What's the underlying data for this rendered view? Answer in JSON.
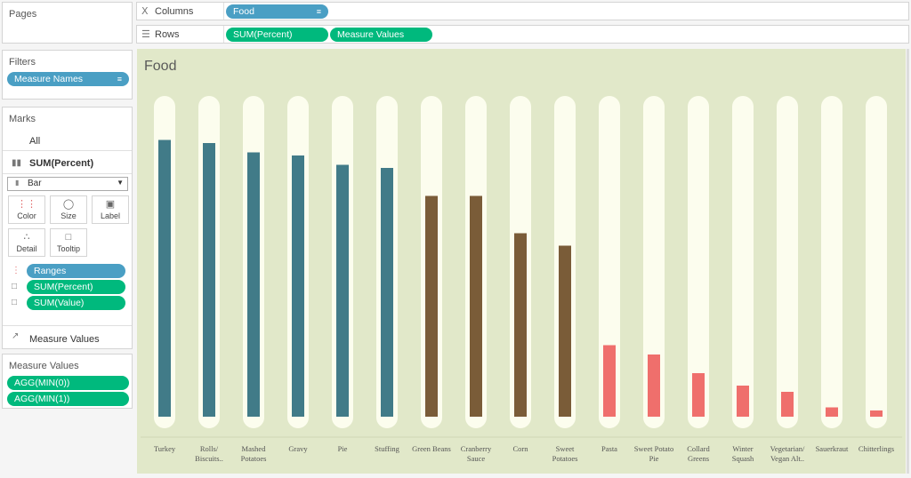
{
  "pages": {
    "title": "Pages"
  },
  "filters": {
    "title": "Filters",
    "pill": "Measure Names"
  },
  "marks": {
    "title": "Marks",
    "all": "All",
    "measure1": "SUM(Percent)",
    "mark_type": "Bar",
    "buttons": {
      "color": "Color",
      "size": "Size",
      "label": "Label",
      "detail": "Detail",
      "tooltip": "Tooltip"
    },
    "fields": [
      "Ranges",
      "SUM(Percent)",
      "SUM(Value)"
    ],
    "measure2": "Measure Values"
  },
  "measure_values": {
    "title": "Measure Values",
    "items": [
      "AGG(MIN(0))",
      "AGG(MIN(1))"
    ]
  },
  "shelves": {
    "columns_label": "Columns",
    "columns_pill": "Food",
    "rows_label": "Rows",
    "rows_pills": [
      "SUM(Percent)",
      "Measure Values"
    ]
  },
  "colors": {
    "high": "#417b88",
    "mid": "#7a5c38",
    "low": "#ef6f6c",
    "track": "#fcfdee",
    "background": "#e1e8c9"
  },
  "chart_data": {
    "type": "bar",
    "title": "Food",
    "categories": [
      [
        "Turkey"
      ],
      [
        "Rolls/",
        "Biscuits.."
      ],
      [
        "Mashed",
        "Potatoes"
      ],
      [
        "Gravy"
      ],
      [
        "Pie"
      ],
      [
        "Stuffing"
      ],
      [
        "Green Beans"
      ],
      [
        "Cranberry",
        "Sauce"
      ],
      [
        "Corn"
      ],
      [
        "Sweet",
        "Potatoes"
      ],
      [
        "Pasta"
      ],
      [
        "Sweet Potato",
        "Pie"
      ],
      [
        "Collard",
        "Greens"
      ],
      [
        "Winter",
        "Squash"
      ],
      [
        "Vegetarian/",
        "Vegan Alt.."
      ],
      [
        "Sauerkraut"
      ],
      [
        "Chitterlings"
      ]
    ],
    "values": [
      0.89,
      0.88,
      0.85,
      0.84,
      0.81,
      0.8,
      0.71,
      0.71,
      0.59,
      0.55,
      0.23,
      0.2,
      0.14,
      0.1,
      0.08,
      0.03,
      0.02
    ],
    "ranges": [
      "high",
      "high",
      "high",
      "high",
      "high",
      "high",
      "mid",
      "mid",
      "mid",
      "mid",
      "low",
      "low",
      "low",
      "low",
      "low",
      "low",
      "low"
    ],
    "ylim": [
      0,
      1
    ]
  }
}
